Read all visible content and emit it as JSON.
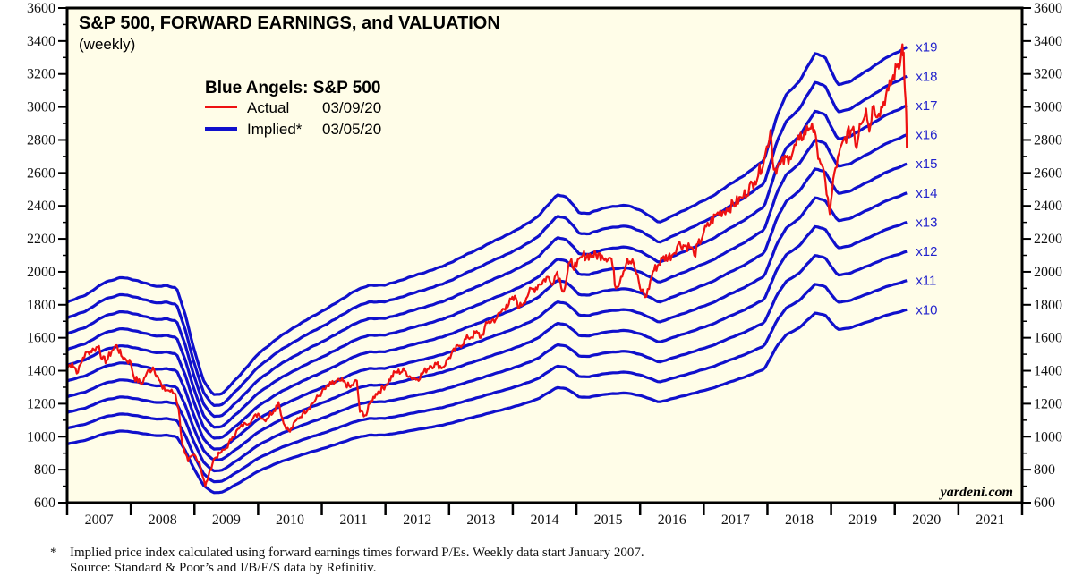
{
  "chart_data": {
    "type": "line",
    "title": "S&P 500, FORWARD EARNINGS, and VALUATION",
    "subtitle": "(weekly)",
    "legend": {
      "title": "Blue Angels: S&P 500",
      "placement": "top-left",
      "entries": [
        {
          "name": "Actual",
          "date": "03/09/20",
          "color": "#ee1111"
        },
        {
          "name": "Implied*",
          "date": "03/05/20",
          "color": "#1010cc"
        }
      ]
    },
    "xlabel": "",
    "ylabel": "",
    "xlim": [
      2007,
      2022
    ],
    "ylim": [
      600,
      3600
    ],
    "x_tick_labels": [
      "2007",
      "2008",
      "2009",
      "2010",
      "2011",
      "2012",
      "2013",
      "2014",
      "2015",
      "2016",
      "2017",
      "2018",
      "2019",
      "2020",
      "2021"
    ],
    "y_ticks": [
      600,
      800,
      1000,
      1200,
      1400,
      1600,
      1800,
      2000,
      2200,
      2400,
      2600,
      2800,
      3000,
      3200,
      3400,
      3600
    ],
    "grid": false,
    "multiples": [
      10,
      11,
      12,
      13,
      14,
      15,
      16,
      17,
      18,
      19
    ],
    "multiple_labels": [
      "x10",
      "x11",
      "x12",
      "x13",
      "x14",
      "x15",
      "x16",
      "x17",
      "x18",
      "x19"
    ],
    "forward_earnings": {
      "x": [
        2007.0,
        2007.3,
        2007.6,
        2007.85,
        2008.1,
        2008.4,
        2008.55,
        2008.72,
        2008.85,
        2009.0,
        2009.15,
        2009.3,
        2009.45,
        2009.7,
        2010.0,
        2010.3,
        2010.6,
        2010.9,
        2011.2,
        2011.5,
        2011.75,
        2012.0,
        2012.3,
        2012.6,
        2012.9,
        2013.2,
        2013.5,
        2013.8,
        2014.1,
        2014.4,
        2014.7,
        2014.85,
        2015.05,
        2015.2,
        2015.5,
        2015.8,
        2016.0,
        2016.3,
        2016.5,
        2016.8,
        2017.1,
        2017.4,
        2017.7,
        2017.95,
        2018.05,
        2018.15,
        2018.3,
        2018.5,
        2018.75,
        2018.9,
        2019.1,
        2019.3,
        2019.6,
        2019.9,
        2020.1,
        2020.19
      ],
      "y": [
        95.5,
        98,
        102,
        103.5,
        102.5,
        100.5,
        101,
        100,
        92,
        80,
        70,
        66,
        66.5,
        72,
        79,
        84,
        88,
        91.5,
        95,
        99,
        101,
        101,
        103,
        105,
        107,
        110,
        113,
        116,
        119,
        123,
        130,
        129,
        124,
        124,
        126,
        126.5,
        125,
        121,
        123,
        126,
        129,
        133,
        137,
        141,
        148,
        155,
        162,
        166,
        175,
        174,
        165,
        166,
        170,
        174,
        176,
        177
      ]
    },
    "sp500_actual": {
      "x": [
        2007.0,
        2007.08,
        2007.17,
        2007.25,
        2007.33,
        2007.42,
        2007.5,
        2007.55,
        2007.62,
        2007.7,
        2007.78,
        2007.85,
        2007.92,
        2008.0,
        2008.05,
        2008.17,
        2008.25,
        2008.35,
        2008.42,
        2008.5,
        2008.6,
        2008.7,
        2008.75,
        2008.8,
        2008.85,
        2008.9,
        2008.95,
        2009.0,
        2009.08,
        2009.17,
        2009.22,
        2009.3,
        2009.4,
        2009.5,
        2009.6,
        2009.7,
        2009.8,
        2009.9,
        2010.0,
        2010.1,
        2010.25,
        2010.32,
        2010.4,
        2010.5,
        2010.6,
        2010.7,
        2010.85,
        2011.0,
        2011.15,
        2011.3,
        2011.45,
        2011.55,
        2011.6,
        2011.7,
        2011.75,
        2011.85,
        2012.0,
        2012.15,
        2012.3,
        2012.4,
        2012.5,
        2012.7,
        2012.8,
        2012.9,
        2013.0,
        2013.15,
        2013.3,
        2013.45,
        2013.5,
        2013.6,
        2013.75,
        2013.9,
        2014.05,
        2014.1,
        2014.25,
        2014.4,
        2014.55,
        2014.6,
        2014.7,
        2014.8,
        2014.9,
        2015.0,
        2015.1,
        2015.25,
        2015.4,
        2015.55,
        2015.62,
        2015.7,
        2015.8,
        2015.9,
        2016.0,
        2016.1,
        2016.2,
        2016.35,
        2016.5,
        2016.6,
        2016.8,
        2016.85,
        2017.0,
        2017.2,
        2017.4,
        2017.6,
        2017.8,
        2017.95,
        2018.05,
        2018.1,
        2018.2,
        2018.35,
        2018.5,
        2018.7,
        2018.78,
        2018.85,
        2018.95,
        2018.98,
        2019.05,
        2019.2,
        2019.35,
        2019.4,
        2019.45,
        2019.55,
        2019.6,
        2019.65,
        2019.75,
        2019.9,
        2020.05,
        2020.08,
        2020.12,
        2020.14,
        2020.16,
        2020.18,
        2020.19
      ],
      "y": [
        1420,
        1445,
        1390,
        1480,
        1515,
        1530,
        1550,
        1470,
        1460,
        1520,
        1555,
        1490,
        1470,
        1450,
        1360,
        1320,
        1385,
        1420,
        1370,
        1290,
        1280,
        1260,
        1170,
        980,
        900,
        850,
        880,
        890,
        840,
        700,
        760,
        860,
        900,
        930,
        1000,
        1050,
        1080,
        1100,
        1140,
        1100,
        1160,
        1210,
        1080,
        1030,
        1100,
        1140,
        1200,
        1270,
        1320,
        1340,
        1300,
        1340,
        1150,
        1130,
        1200,
        1260,
        1310,
        1390,
        1400,
        1360,
        1350,
        1430,
        1440,
        1420,
        1480,
        1550,
        1600,
        1630,
        1600,
        1690,
        1720,
        1800,
        1840,
        1780,
        1870,
        1920,
        1970,
        1930,
        2000,
        1880,
        2060,
        2030,
        2100,
        2100,
        2100,
        2080,
        1900,
        1970,
        2080,
        2050,
        1900,
        1850,
        2000,
        2080,
        2100,
        2170,
        2150,
        2100,
        2240,
        2350,
        2390,
        2450,
        2550,
        2680,
        2860,
        2620,
        2650,
        2700,
        2800,
        2900,
        2750,
        2650,
        2450,
        2350,
        2600,
        2800,
        2880,
        2750,
        2900,
        2990,
        2850,
        3000,
        2960,
        3100,
        3260,
        3250,
        3380,
        3330,
        3100,
        2970,
        2750
      ]
    }
  },
  "annotations": {
    "watermark": "yardeni.com",
    "footnote_star": "*",
    "footnote_line1": "Implied price index calculated using forward earnings times forward P/Es. Weekly data start January 2007.",
    "footnote_line2": "Source: Standard & Poor’s and I/B/E/S data by Refinitiv."
  },
  "colors": {
    "plot_background": "#fffde8",
    "actual": "#ee1111",
    "implied": "#1010cc",
    "multiple_label": "#2222cc"
  }
}
